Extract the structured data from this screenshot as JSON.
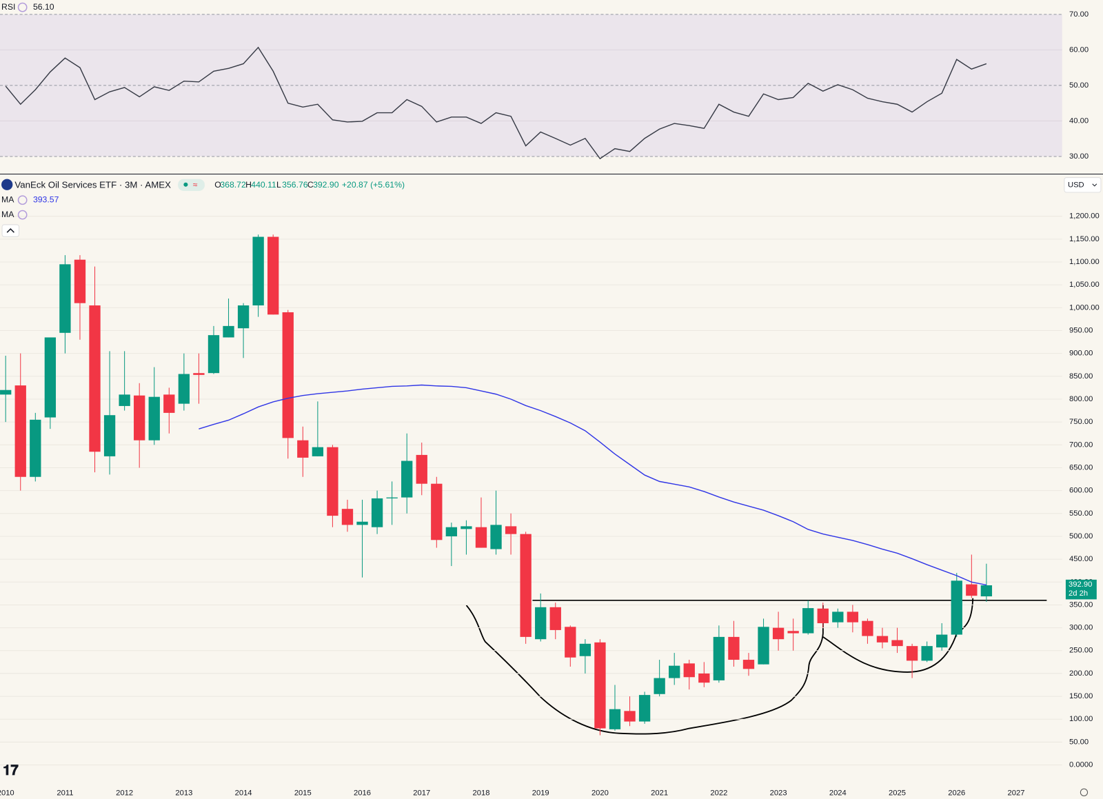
{
  "header": {
    "rsi_value": "56.10",
    "ohlc": [
      {
        "label": "O",
        "value": "368.72"
      },
      {
        "label": "H",
        "value": "440.11"
      },
      {
        "label": "L",
        "value": "356.76"
      },
      {
        "label": "C",
        "value": "392.90"
      }
    ],
    "change": "+20.87 (+5.61%)",
    "ma2_label": "MA",
    "currency": "USD",
    "price_tag": "392.90",
    "countdown": "2d 2h"
  },
  "chart_data": [
    {
      "type": "line",
      "x": [
        2010,
        2010.25,
        2010.5,
        2010.75,
        2011,
        2011.25,
        2011.5,
        2011.75,
        2012,
        2012.25,
        2012.5,
        2012.75,
        2013,
        2013.25,
        2013.5,
        2013.75,
        2014,
        2014.25,
        2014.5,
        2014.75,
        2015,
        2015.25,
        2015.5,
        2015.75,
        2016,
        2016.25,
        2016.5,
        2016.75,
        2017,
        2017.25,
        2017.5,
        2017.75,
        2018,
        2018.25,
        2018.5,
        2018.75,
        2019,
        2019.25,
        2019.5,
        2019.75,
        2020,
        2020.25,
        2020.5,
        2020.75,
        2021,
        2021.25,
        2021.5,
        2021.75,
        2022,
        2022.25,
        2022.5,
        2022.75,
        2023,
        2023.25,
        2023.5,
        2023.75,
        2024,
        2024.25,
        2024.5,
        2024.75,
        2025,
        2025.25,
        2025.5,
        2025.75,
        2026,
        2026.25,
        2026.5
      ],
      "xlim": [
        2009.905,
        2027.775
      ],
      "ylim": [
        25.45,
        73.96
      ],
      "yticks": [
        {
          "value": 30,
          "label": "30.00"
        },
        {
          "value": 40,
          "label": "40.00"
        },
        {
          "value": 50,
          "label": "50.00"
        },
        {
          "value": 60,
          "label": "60.00"
        },
        {
          "value": 70,
          "label": "70.00"
        }
      ],
      "grid": true,
      "series": [
        {
          "name": "RSI",
          "color": "#363a45",
          "values": [
            49.8,
            44.7,
            48.8,
            53.8,
            57.7,
            55,
            46,
            48.2,
            49.4,
            46.8,
            49.6,
            48.6,
            51.2,
            51,
            54,
            54.8,
            56.1,
            60.7,
            54,
            45,
            43.9,
            44.7,
            40.3,
            39.7,
            39.9,
            42.3,
            42.3,
            46,
            44.1,
            39.7,
            41.1,
            41.1,
            39.3,
            42.3,
            41.3,
            33,
            36.9,
            35.1,
            33.2,
            35.1,
            29.4,
            32.2,
            31.4,
            35.1,
            37.7,
            39.3,
            38.7,
            37.9,
            44.7,
            42.5,
            41.3,
            47.6,
            46,
            46.6,
            50.6,
            48.4,
            50.2,
            48.8,
            46.4,
            45.4,
            44.7,
            42.5,
            45.4,
            47.8,
            57.3,
            54.6,
            56.1
          ]
        }
      ]
    },
    {
      "type": "candlestick",
      "title": "VanEck Oil Services ETF · 3M · AMEX",
      "x": [
        2010,
        2010.25,
        2010.5,
        2010.75,
        2011,
        2011.25,
        2011.5,
        2011.75,
        2012,
        2012.25,
        2012.5,
        2012.75,
        2013,
        2013.25,
        2013.5,
        2013.75,
        2014,
        2014.25,
        2014.5,
        2014.75,
        2015,
        2015.25,
        2015.5,
        2015.75,
        2016,
        2016.25,
        2016.5,
        2016.75,
        2017,
        2017.25,
        2017.5,
        2017.75,
        2018,
        2018.25,
        2018.5,
        2018.75,
        2019,
        2019.25,
        2019.5,
        2019.75,
        2020,
        2020.25,
        2020.5,
        2020.75,
        2021,
        2021.25,
        2021.5,
        2021.75,
        2022,
        2022.25,
        2022.5,
        2022.75,
        2023,
        2023.25,
        2023.5,
        2023.75,
        2024,
        2024.25,
        2024.5,
        2024.75,
        2025,
        2025.25,
        2025.5,
        2025.75,
        2026,
        2026.25,
        2026.5
      ],
      "xlim": [
        2009.905,
        2027.775
      ],
      "xticks": [
        2010,
        2011,
        2012,
        2013,
        2014,
        2015,
        2016,
        2017,
        2018,
        2019,
        2020,
        2021,
        2022,
        2023,
        2024,
        2025,
        2026,
        2027
      ],
      "ylim": [
        -27.7,
        1287.7
      ],
      "yticks": [
        {
          "value": 0,
          "label": "0.0000"
        },
        {
          "value": 50,
          "label": "50.00"
        },
        {
          "value": 100,
          "label": "100.00"
        },
        {
          "value": 150,
          "label": "150.00"
        },
        {
          "value": 200,
          "label": "200.00"
        },
        {
          "value": 250,
          "label": "250.00"
        },
        {
          "value": 300,
          "label": "300.00"
        },
        {
          "value": 350,
          "label": "350.00"
        },
        {
          "value": 400,
          "label": "400.00"
        },
        {
          "value": 450,
          "label": "450.00"
        },
        {
          "value": 500,
          "label": "500.00"
        },
        {
          "value": 550,
          "label": "550.00"
        },
        {
          "value": 600,
          "label": "600.00"
        },
        {
          "value": 650,
          "label": "650.00"
        },
        {
          "value": 700,
          "label": "700.00"
        },
        {
          "value": 750,
          "label": "750.00"
        },
        {
          "value": 800,
          "label": "800.00"
        },
        {
          "value": 850,
          "label": "850.00"
        },
        {
          "value": 900,
          "label": "900.00"
        },
        {
          "value": 950,
          "label": "950.00"
        },
        {
          "value": 1000,
          "label": "1,000.00"
        },
        {
          "value": 1050,
          "label": "1,050.00"
        },
        {
          "value": 1100,
          "label": "1,100.00"
        },
        {
          "value": 1150,
          "label": "1,150.00"
        },
        {
          "value": 1200,
          "label": "1,200.00"
        }
      ],
      "grid": true,
      "up_color": "#089981",
      "down_color": "#f23645",
      "open": [
        810,
        830,
        630,
        760,
        945,
        1105,
        1005,
        675,
        785,
        808,
        710,
        810,
        790,
        857,
        857,
        935,
        955,
        1005,
        1155,
        990,
        710,
        675,
        695,
        560,
        525,
        520,
        583,
        585,
        678,
        615,
        500,
        516,
        520,
        472,
        522,
        505,
        275,
        345,
        302,
        238,
        268,
        78,
        118,
        95,
        155,
        190,
        222,
        200,
        185,
        280,
        230,
        220,
        300,
        293,
        288,
        342,
        312,
        335,
        315,
        282,
        273,
        260,
        228,
        257,
        285,
        395,
        368.72
      ],
      "high": [
        895,
        900,
        770,
        935,
        1115,
        1115,
        1090,
        905,
        905,
        835,
        870,
        825,
        900,
        900,
        960,
        1020,
        1010,
        1160,
        1160,
        995,
        740,
        795,
        700,
        580,
        580,
        600,
        620,
        725,
        705,
        630,
        530,
        535,
        585,
        600,
        550,
        510,
        375,
        355,
        305,
        275,
        275,
        175,
        150,
        160,
        230,
        245,
        230,
        225,
        305,
        315,
        245,
        320,
        335,
        320,
        360,
        355,
        342,
        350,
        320,
        300,
        300,
        265,
        270,
        310,
        420,
        460,
        440.11
      ],
      "low": [
        750,
        600,
        620,
        735,
        900,
        930,
        640,
        635,
        775,
        650,
        700,
        725,
        775,
        790,
        855,
        935,
        890,
        980,
        985,
        670,
        630,
        675,
        520,
        510,
        410,
        505,
        525,
        550,
        590,
        475,
        435,
        460,
        475,
        460,
        460,
        265,
        270,
        275,
        215,
        200,
        65,
        75,
        85,
        90,
        150,
        175,
        165,
        170,
        180,
        215,
        195,
        220,
        250,
        250,
        285,
        300,
        300,
        290,
        265,
        255,
        245,
        190,
        225,
        250,
        280,
        365,
        356.76
      ],
      "close": [
        820,
        630,
        755,
        935,
        1095,
        1010,
        685,
        765,
        810,
        710,
        805,
        770,
        855,
        853,
        940,
        960,
        1005,
        1155,
        985,
        715,
        672,
        695,
        545,
        525,
        532,
        583,
        585,
        665,
        615,
        492,
        520,
        522,
        475,
        525,
        505,
        280,
        345,
        295,
        235,
        265,
        80,
        122,
        95,
        153,
        190,
        217,
        192,
        180,
        280,
        230,
        210,
        302,
        275,
        288,
        343,
        310,
        335,
        312,
        282,
        268,
        260,
        228,
        260,
        285,
        403,
        370,
        392.9
      ],
      "series": [
        {
          "name": "MA",
          "color": "#2f35e6",
          "values": [
            null,
            null,
            null,
            null,
            null,
            null,
            null,
            null,
            null,
            null,
            null,
            null,
            null,
            735,
            745,
            754,
            768,
            783,
            794,
            802,
            808,
            812,
            815,
            818,
            822,
            825,
            828,
            829,
            831,
            829,
            828,
            825,
            818,
            811,
            800,
            786,
            775,
            762,
            748,
            731,
            706,
            680,
            657,
            634,
            620,
            614,
            608,
            598,
            586,
            575,
            566,
            557,
            545,
            532,
            515,
            505,
            498,
            491,
            482,
            472,
            463,
            451,
            438,
            426,
            414,
            400,
            393.57
          ]
        }
      ],
      "hline": 360
    }
  ]
}
